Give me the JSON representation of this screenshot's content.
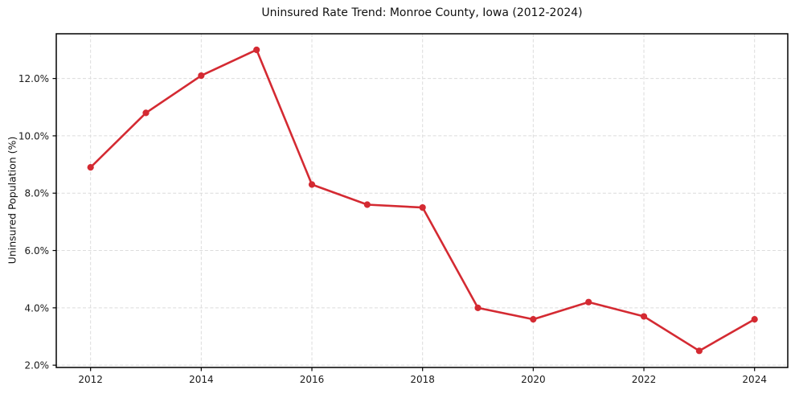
{
  "chart_data": {
    "type": "line",
    "title": "Uninsured Rate Trend: Monroe County, Iowa (2012-2024)",
    "xlabel": "",
    "ylabel": "Uninsured Population (%)",
    "x": [
      2012,
      2013,
      2014,
      2015,
      2016,
      2017,
      2018,
      2019,
      2020,
      2021,
      2022,
      2023,
      2024
    ],
    "values": [
      8.9,
      10.8,
      12.1,
      13.0,
      8.3,
      7.6,
      7.5,
      4.0,
      3.6,
      4.2,
      3.7,
      2.5,
      3.6
    ],
    "unit": "%",
    "xticks": [
      2012,
      2014,
      2016,
      2018,
      2020,
      2022,
      2024
    ],
    "yticks": [
      {
        "value": 2,
        "label": "2.0%"
      },
      {
        "value": 4,
        "label": "4.0%"
      },
      {
        "value": 6,
        "label": "6.0%"
      },
      {
        "value": 8,
        "label": "8.0%"
      },
      {
        "value": 10,
        "label": "10.0%"
      },
      {
        "value": 12,
        "label": "12.0%"
      }
    ],
    "xlim": [
      2011.38,
      2024.6
    ],
    "ylim": [
      1.92,
      13.56
    ],
    "grid": true,
    "grid_style": "dashed",
    "legend_position": "none",
    "line_color": "#d42a32",
    "marker": "circle",
    "grid_color": "#dcdcdc",
    "axis_color": "#000000",
    "text_color": "#1a1a1a"
  }
}
